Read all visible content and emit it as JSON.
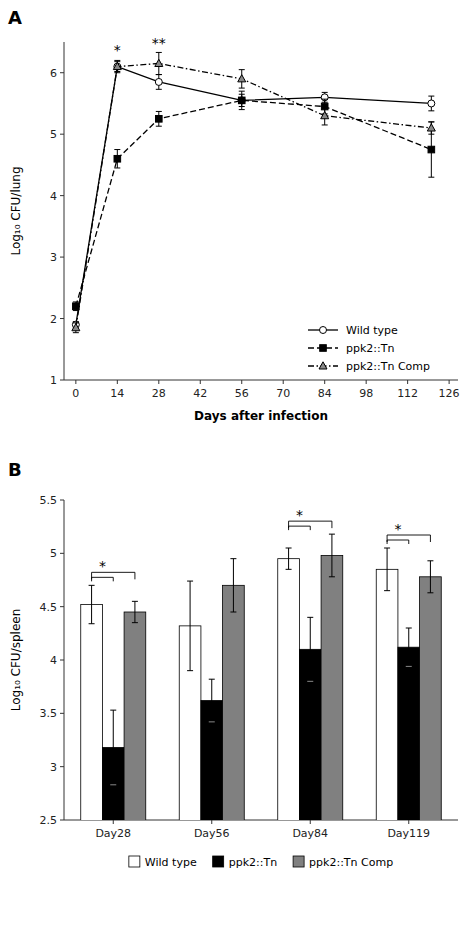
{
  "chart_data": [
    {
      "type": "line",
      "title": "A",
      "x": [
        0,
        14,
        28,
        56,
        84,
        120
      ],
      "x_label": "Days after infection",
      "y_label": "Log₁₀ CFU/lung",
      "xlim": [
        -4,
        129
      ],
      "xticks": [
        0,
        14,
        28,
        42,
        56,
        70,
        84,
        98,
        112,
        126
      ],
      "ylim": [
        1,
        6.5
      ],
      "yticks": [
        1,
        2,
        3,
        4,
        5,
        6
      ],
      "grid": false,
      "legend": "lower right",
      "series": [
        {
          "name": "Wild type",
          "color": "black",
          "marker": "circle",
          "line_style": "solid",
          "values": [
            1.9,
            6.1,
            5.85,
            5.55,
            5.6,
            5.5
          ],
          "errors": [
            0.05,
            0.08,
            0.12,
            0.1,
            0.08,
            0.12
          ]
        },
        {
          "name": "ppk2::Tn",
          "color": "black",
          "marker": "square",
          "line_style": "dashed",
          "values": [
            2.2,
            4.6,
            5.25,
            5.55,
            5.45,
            4.75
          ],
          "errors": [
            0.07,
            0.15,
            0.12,
            0.15,
            0.12,
            0.45
          ]
        },
        {
          "name": "ppk2::Tn Comp",
          "color": "black",
          "marker": "triangle",
          "line_style": "dashdot",
          "values": [
            1.85,
            6.1,
            6.15,
            5.9,
            5.3,
            5.1
          ],
          "errors": [
            0.08,
            0.1,
            0.18,
            0.15,
            0.15,
            0.1
          ]
        }
      ],
      "annotations": [
        {
          "text": "*",
          "x": 14,
          "y": 6.28
        },
        {
          "text": "**",
          "x": 28,
          "y": 6.38
        }
      ]
    },
    {
      "type": "bar",
      "title": "B",
      "categories": [
        "Day28",
        "Day56",
        "Day84",
        "Day119"
      ],
      "y_label": "Log₁₀ CFU/spleen",
      "ylim": [
        2.5,
        5.5
      ],
      "yticks": [
        2.5,
        3,
        3.5,
        4,
        4.5,
        5,
        5.5
      ],
      "grid": false,
      "legend": "bottom",
      "series": [
        {
          "name": "Wild type",
          "color": "white",
          "values": [
            4.52,
            4.32,
            4.95,
            4.85
          ],
          "errors": [
            0.18,
            0.42,
            0.1,
            0.2
          ]
        },
        {
          "name": "ppk2::Tn",
          "color": "black",
          "values": [
            3.18,
            3.62,
            4.1,
            4.12
          ],
          "errors": [
            0.35,
            0.2,
            0.3,
            0.18
          ]
        },
        {
          "name": "ppk2::Tn Comp",
          "color": "#808080",
          "values": [
            4.45,
            4.7,
            4.98,
            4.78
          ],
          "errors": [
            0.1,
            0.25,
            0.2,
            0.15
          ]
        }
      ],
      "annotations": [
        {
          "text": "*",
          "x": "Day28"
        },
        {
          "text": "*",
          "x": "Day84"
        },
        {
          "text": "*",
          "x": "Day119"
        }
      ]
    }
  ]
}
